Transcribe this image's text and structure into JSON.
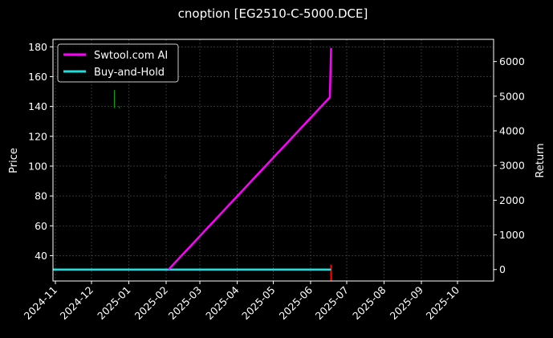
{
  "chart_data": {
    "type": "line",
    "title": "cnoption [EG2510-C-5000.DCE]",
    "xlabel": "",
    "ylabel": "Price",
    "y2label": "Return",
    "x_ticks": [
      "2024-11",
      "2024-12",
      "2025-01",
      "2025-02",
      "2025-03",
      "2025-04",
      "2025-05",
      "2025-06",
      "2025-07",
      "2025-08",
      "2025-09",
      "2025-10"
    ],
    "xlim": [
      "2024-10-30",
      "2025-10-31"
    ],
    "ylim": [
      23,
      185
    ],
    "y_ticks": [
      40,
      60,
      80,
      100,
      120,
      140,
      160,
      180
    ],
    "y2lim": [
      -330,
      6640
    ],
    "y2_ticks": [
      0,
      1000,
      2000,
      3000,
      4000,
      5000,
      6000
    ],
    "grid": true,
    "legend_placement": "top-left",
    "series": [
      {
        "name": "Swtool.com AI",
        "axis": "right",
        "color": "#ff00ff",
        "x": [
          "2025-02-03",
          "2025-06-17",
          "2025-06-18"
        ],
        "y": [
          0,
          4970,
          6390
        ]
      },
      {
        "name": "Buy-and-Hold",
        "axis": "right",
        "color": "#22dddd",
        "x": [
          "2024-10-30",
          "2025-06-18"
        ],
        "y": [
          0,
          0
        ]
      }
    ],
    "price_marks": [
      {
        "date": "2024-12-20",
        "low": 139,
        "high": 151,
        "color": "#00aa00"
      },
      {
        "date": "2024-12-24",
        "low": 139,
        "high": 140,
        "color": "#00aa00"
      },
      {
        "date": "2025-01-31",
        "low": 92.5,
        "high": 93.5,
        "color": "#aa0000"
      },
      {
        "date": "2025-06-18",
        "low": 23,
        "high": 34,
        "color": "#ff0000"
      }
    ],
    "colors": {
      "background": "#000000",
      "grid": "#555555",
      "axis": "#ffffff"
    }
  }
}
